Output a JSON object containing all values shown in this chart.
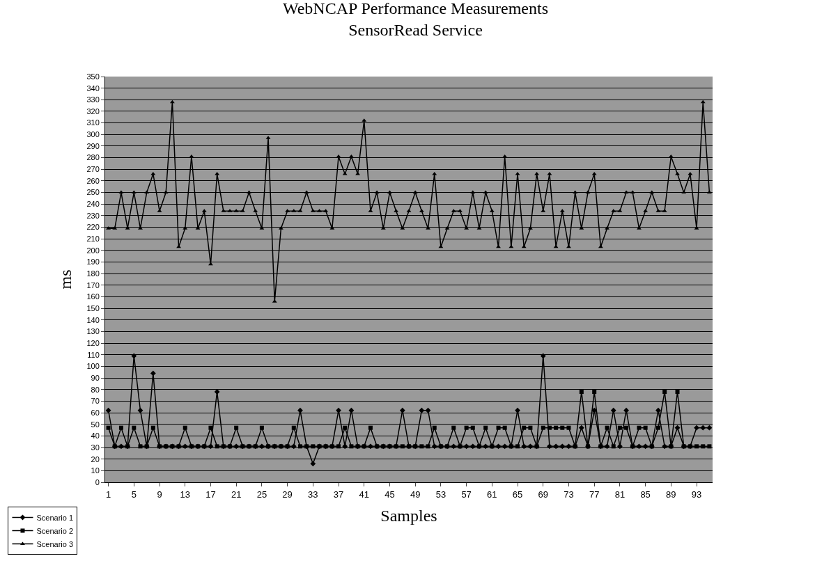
{
  "chart_data": {
    "type": "line",
    "title": "WebNCAP Performance Measurements",
    "subtitle": "SensorRead Service",
    "xlabel": "Samples",
    "ylabel": "ms",
    "categories": [
      "1",
      null,
      null,
      null,
      "5",
      null,
      null,
      null,
      "9",
      null,
      null,
      null,
      "13",
      null,
      null,
      null,
      "17",
      null,
      null,
      null,
      "21",
      null,
      null,
      null,
      "25",
      null,
      null,
      null,
      "29",
      null,
      null,
      null,
      "33",
      null,
      null,
      null,
      "37",
      null,
      null,
      null,
      "41",
      null,
      null,
      null,
      "45",
      null,
      null,
      null,
      "49",
      null,
      null,
      null,
      "53",
      null,
      null,
      null,
      "57",
      null,
      null,
      null,
      "61",
      null,
      null,
      null,
      "65",
      null,
      null,
      null,
      "69",
      null,
      null,
      null,
      "73",
      null,
      null,
      null,
      "77",
      null,
      null,
      null,
      "81",
      null,
      null,
      null,
      "85",
      null,
      null,
      null,
      "89",
      null,
      null,
      null,
      "93",
      null,
      null
    ],
    "series": [
      {
        "name": "Scenario 1",
        "color": "#000000",
        "marker": "diamond",
        "values": [
          62,
          31,
          31,
          31,
          109,
          62,
          31,
          94,
          31,
          31,
          31,
          31,
          31,
          31,
          31,
          31,
          31,
          78,
          31,
          31,
          31,
          31,
          31,
          31,
          31,
          31,
          31,
          31,
          31,
          31,
          62,
          31,
          16,
          31,
          31,
          31,
          62,
          31,
          62,
          31,
          31,
          31,
          31,
          31,
          31,
          31,
          62,
          31,
          31,
          62,
          62,
          31,
          31,
          31,
          31,
          31,
          31,
          31,
          31,
          31,
          31,
          31,
          31,
          31,
          62,
          31,
          31,
          31,
          109,
          31,
          31,
          31,
          31,
          31,
          47,
          31,
          62,
          31,
          31,
          62,
          31,
          62,
          31,
          31,
          31,
          31,
          62,
          31,
          31,
          47,
          31,
          31,
          47,
          47,
          47
        ]
      },
      {
        "name": "Scenario 2",
        "color": "#000000",
        "marker": "square",
        "values": [
          47,
          31,
          47,
          31,
          47,
          31,
          31,
          47,
          31,
          31,
          31,
          31,
          47,
          31,
          31,
          31,
          47,
          31,
          31,
          31,
          47,
          31,
          31,
          31,
          47,
          31,
          31,
          31,
          31,
          47,
          31,
          31,
          31,
          31,
          31,
          31,
          31,
          47,
          31,
          31,
          31,
          47,
          31,
          31,
          31,
          31,
          31,
          31,
          31,
          31,
          31,
          47,
          31,
          31,
          47,
          31,
          47,
          47,
          31,
          47,
          31,
          47,
          47,
          31,
          31,
          47,
          47,
          31,
          47,
          47,
          47,
          47,
          47,
          31,
          78,
          31,
          78,
          31,
          47,
          31,
          47,
          47,
          31,
          47,
          47,
          31,
          47,
          78,
          31,
          78,
          31,
          31,
          31,
          31,
          31
        ]
      },
      {
        "name": "Scenario 3",
        "color": "#000000",
        "marker": "triangle",
        "values": [
          219,
          219,
          250,
          219,
          250,
          219,
          250,
          266,
          234,
          250,
          328,
          203,
          219,
          281,
          219,
          234,
          188,
          266,
          234,
          234,
          234,
          234,
          250,
          234,
          219,
          297,
          156,
          219,
          234,
          234,
          234,
          250,
          234,
          234,
          234,
          219,
          281,
          266,
          281,
          266,
          312,
          234,
          250,
          219,
          250,
          234,
          219,
          234,
          250,
          234,
          219,
          266,
          203,
          219,
          234,
          234,
          219,
          250,
          219,
          250,
          234,
          203,
          281,
          203,
          266,
          203,
          219,
          266,
          234,
          266,
          203,
          234,
          203,
          250,
          219,
          250,
          266,
          203,
          219,
          234,
          234,
          250,
          250,
          219,
          234,
          250,
          234,
          234,
          281,
          266,
          250,
          266,
          219,
          328,
          250
        ]
      }
    ],
    "ylim": [
      0,
      350
    ],
    "yticks": [
      0,
      10,
      20,
      30,
      40,
      50,
      60,
      70,
      80,
      90,
      100,
      110,
      120,
      130,
      140,
      150,
      160,
      170,
      180,
      190,
      200,
      210,
      220,
      230,
      240,
      250,
      260,
      270,
      280,
      290,
      300,
      310,
      320,
      330,
      340,
      350
    ],
    "grid": "y",
    "legend": "bottom left",
    "line_style": "solid"
  }
}
